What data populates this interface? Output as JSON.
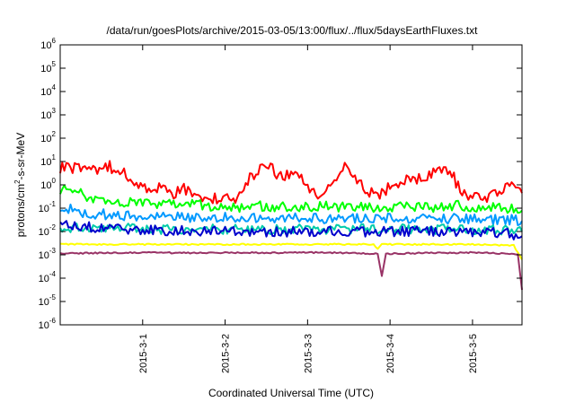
{
  "chart_data": {
    "type": "line",
    "title": "/data/run/goesPlots/archive/2015-03-05/13:00/flux/../flux/5daysEarthFluxes.txt",
    "xlabel": "Coordinated Universal Time (UTC)",
    "ylabel_main": "protons/cm",
    "ylabel_sup": "2",
    "ylabel_rest": "-s-sr-MeV",
    "y_scale": "log",
    "ylim_exp": [
      -6,
      6
    ],
    "y_ticks": [
      {
        "exp": -6,
        "base": "10",
        "sup": "-6"
      },
      {
        "exp": -5,
        "base": "10",
        "sup": "-5"
      },
      {
        "exp": -4,
        "base": "10",
        "sup": "-4"
      },
      {
        "exp": -3,
        "base": "10",
        "sup": "-3"
      },
      {
        "exp": -2,
        "base": "10",
        "sup": "-2"
      },
      {
        "exp": -1,
        "base": "10",
        "sup": "-1"
      },
      {
        "exp": 0,
        "base": "10",
        "sup": "0"
      },
      {
        "exp": 1,
        "base": "10",
        "sup": "1"
      },
      {
        "exp": 2,
        "base": "10",
        "sup": "2"
      },
      {
        "exp": 3,
        "base": "10",
        "sup": "3"
      },
      {
        "exp": 4,
        "base": "10",
        "sup": "4"
      },
      {
        "exp": 5,
        "base": "10",
        "sup": "5"
      },
      {
        "exp": 6,
        "base": "10",
        "sup": "6"
      }
    ],
    "x_unit": "days",
    "xlim": [
      0,
      5.6
    ],
    "x_ticks": [
      {
        "x": 1,
        "label": "2015-3-1"
      },
      {
        "x": 2,
        "label": "2015-3-2"
      },
      {
        "x": 3,
        "label": "2015-3-3"
      },
      {
        "x": 4,
        "label": "2015-3-4"
      },
      {
        "x": 5,
        "label": "2015-3-5"
      }
    ],
    "grid": false,
    "legend": "none",
    "series": [
      {
        "color": "#ff0000",
        "log_points": [
          [
            0.0,
            0.75
          ],
          [
            0.15,
            0.72
          ],
          [
            0.3,
            0.6
          ],
          [
            0.45,
            0.68
          ],
          [
            0.6,
            0.8
          ],
          [
            0.7,
            0.55
          ],
          [
            0.8,
            0.45
          ],
          [
            0.9,
            -0.2
          ],
          [
            1.0,
            0.1
          ],
          [
            1.1,
            -0.3
          ],
          [
            1.2,
            -0.1
          ],
          [
            1.35,
            -0.4
          ],
          [
            1.5,
            -0.2
          ],
          [
            1.7,
            -0.5
          ],
          [
            1.9,
            -0.6
          ],
          [
            2.0,
            -0.4
          ],
          [
            2.1,
            -0.75
          ],
          [
            2.2,
            -0.2
          ],
          [
            2.3,
            0.3
          ],
          [
            2.45,
            0.8
          ],
          [
            2.55,
            0.7
          ],
          [
            2.7,
            0.3
          ],
          [
            2.85,
            0.55
          ],
          [
            2.95,
            0.2
          ],
          [
            3.05,
            -0.4
          ],
          [
            3.2,
            -0.5
          ],
          [
            3.35,
            0.3
          ],
          [
            3.45,
            0.75
          ],
          [
            3.55,
            0.35
          ],
          [
            3.7,
            -0.2
          ],
          [
            3.85,
            -0.45
          ],
          [
            4.0,
            -0.1
          ],
          [
            4.15,
            0.2
          ],
          [
            4.3,
            0.2
          ],
          [
            4.45,
            0.35
          ],
          [
            4.6,
            0.6
          ],
          [
            4.75,
            0.45
          ],
          [
            4.85,
            -0.2
          ],
          [
            4.95,
            -0.5
          ],
          [
            5.1,
            -0.6
          ],
          [
            5.3,
            -0.3
          ],
          [
            5.45,
            0.1
          ],
          [
            5.55,
            -0.1
          ],
          [
            5.6,
            -0.35
          ]
        ]
      },
      {
        "color": "#00ff00",
        "log_points": [
          [
            0.0,
            -0.2
          ],
          [
            0.1,
            -0.2
          ],
          [
            0.2,
            -0.25
          ],
          [
            0.3,
            -0.45
          ],
          [
            0.4,
            -0.55
          ],
          [
            0.6,
            -0.6
          ],
          [
            0.8,
            -0.75
          ],
          [
            1.0,
            -0.85
          ],
          [
            1.2,
            -0.8
          ],
          [
            1.4,
            -0.85
          ],
          [
            1.6,
            -0.85
          ],
          [
            1.8,
            -0.9
          ],
          [
            2.0,
            -0.9
          ],
          [
            2.2,
            -0.95
          ],
          [
            2.4,
            -0.9
          ],
          [
            2.6,
            -0.95
          ],
          [
            2.8,
            -0.9
          ],
          [
            3.0,
            -0.95
          ],
          [
            3.2,
            -0.9
          ],
          [
            3.4,
            -0.95
          ],
          [
            3.6,
            -0.95
          ],
          [
            3.8,
            -0.95
          ],
          [
            4.0,
            -0.95
          ],
          [
            4.2,
            -0.9
          ],
          [
            4.4,
            -0.95
          ],
          [
            4.6,
            -0.95
          ],
          [
            4.8,
            -0.9
          ],
          [
            5.0,
            -0.95
          ],
          [
            5.2,
            -0.95
          ],
          [
            5.4,
            -1.0
          ],
          [
            5.6,
            -1.1
          ]
        ]
      },
      {
        "color": "#0099ff",
        "log_points": [
          [
            0.0,
            -1.0
          ],
          [
            0.1,
            -1.05
          ],
          [
            0.2,
            -1.1
          ],
          [
            0.3,
            -1.2
          ],
          [
            0.5,
            -1.25
          ],
          [
            0.7,
            -1.3
          ],
          [
            0.9,
            -1.35
          ],
          [
            1.1,
            -1.35
          ],
          [
            1.3,
            -1.35
          ],
          [
            1.5,
            -1.4
          ],
          [
            1.7,
            -1.4
          ],
          [
            1.9,
            -1.4
          ],
          [
            2.1,
            -1.4
          ],
          [
            2.3,
            -1.4
          ],
          [
            2.5,
            -1.4
          ],
          [
            2.7,
            -1.4
          ],
          [
            2.9,
            -1.45
          ],
          [
            3.1,
            -1.45
          ],
          [
            3.3,
            -1.45
          ],
          [
            3.5,
            -1.45
          ],
          [
            3.7,
            -1.45
          ],
          [
            3.9,
            -1.45
          ],
          [
            4.1,
            -1.45
          ],
          [
            4.3,
            -1.45
          ],
          [
            4.5,
            -1.45
          ],
          [
            4.7,
            -1.45
          ],
          [
            4.9,
            -1.45
          ],
          [
            5.1,
            -1.5
          ],
          [
            5.3,
            -1.5
          ],
          [
            5.5,
            -1.5
          ],
          [
            5.6,
            -1.55
          ]
        ]
      },
      {
        "color": "#00ccaa",
        "log_points": [
          [
            0.0,
            -1.85
          ],
          [
            0.5,
            -1.85
          ],
          [
            1.0,
            -1.9
          ],
          [
            1.5,
            -1.9
          ],
          [
            2.0,
            -1.9
          ],
          [
            2.5,
            -1.9
          ],
          [
            3.0,
            -1.9
          ],
          [
            3.5,
            -1.9
          ],
          [
            4.0,
            -1.9
          ],
          [
            4.5,
            -1.9
          ],
          [
            5.0,
            -1.9
          ],
          [
            5.5,
            -1.95
          ],
          [
            5.6,
            -2.0
          ]
        ]
      },
      {
        "color": "#0000cc",
        "log_points": [
          [
            0.0,
            -1.75
          ],
          [
            0.3,
            -1.8
          ],
          [
            0.6,
            -1.85
          ],
          [
            0.9,
            -1.9
          ],
          [
            1.2,
            -1.95
          ],
          [
            1.5,
            -1.95
          ],
          [
            1.8,
            -2.0
          ],
          [
            2.1,
            -2.0
          ],
          [
            2.4,
            -2.0
          ],
          [
            2.7,
            -2.0
          ],
          [
            3.0,
            -2.0
          ],
          [
            3.3,
            -2.0
          ],
          [
            3.6,
            -2.0
          ],
          [
            3.9,
            -2.0
          ],
          [
            4.2,
            -2.0
          ],
          [
            4.5,
            -2.0
          ],
          [
            4.8,
            -2.0
          ],
          [
            5.1,
            -2.0
          ],
          [
            5.4,
            -2.05
          ],
          [
            5.6,
            -2.2
          ]
        ]
      },
      {
        "color": "#ffff00",
        "log_points": [
          [
            0.0,
            -2.55
          ],
          [
            0.5,
            -2.55
          ],
          [
            1.0,
            -2.55
          ],
          [
            1.5,
            -2.55
          ],
          [
            2.0,
            -2.55
          ],
          [
            2.5,
            -2.55
          ],
          [
            3.0,
            -2.55
          ],
          [
            3.5,
            -2.55
          ],
          [
            3.8,
            -2.55
          ],
          [
            3.85,
            -2.75
          ],
          [
            3.9,
            -2.55
          ],
          [
            4.5,
            -2.55
          ],
          [
            5.0,
            -2.55
          ],
          [
            5.5,
            -2.6
          ],
          [
            5.6,
            -3.2
          ]
        ]
      },
      {
        "color": "#993366",
        "log_points": [
          [
            0.0,
            -2.95
          ],
          [
            0.5,
            -2.92
          ],
          [
            1.0,
            -2.9
          ],
          [
            1.5,
            -2.92
          ],
          [
            2.0,
            -2.9
          ],
          [
            2.5,
            -2.92
          ],
          [
            3.0,
            -2.9
          ],
          [
            3.5,
            -2.92
          ],
          [
            3.85,
            -2.95
          ],
          [
            3.9,
            -3.9
          ],
          [
            3.95,
            -2.95
          ],
          [
            4.5,
            -2.92
          ],
          [
            5.0,
            -2.9
          ],
          [
            5.5,
            -2.95
          ],
          [
            5.55,
            -3.0
          ],
          [
            5.6,
            -4.5
          ]
        ]
      }
    ]
  }
}
